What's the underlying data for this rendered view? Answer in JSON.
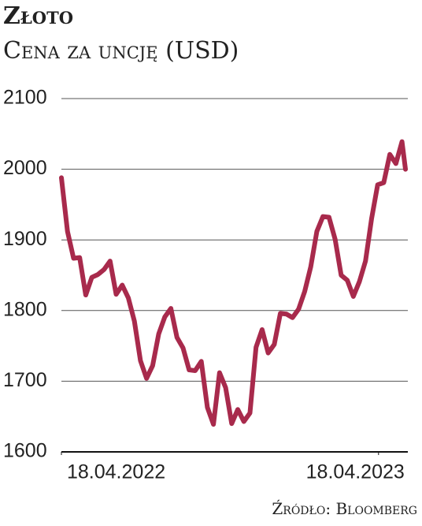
{
  "chart_data": {
    "type": "line",
    "title": "Złoto",
    "subtitle": "Cena za uncję (USD)",
    "source": "Źródło: Bloomberg",
    "x": [
      "2022-04-18",
      "2022-04-25",
      "2022-05-02",
      "2022-05-09",
      "2022-05-16",
      "2022-05-23",
      "2022-05-30",
      "2022-06-06",
      "2022-06-13",
      "2022-06-20",
      "2022-06-27",
      "2022-07-04",
      "2022-07-11",
      "2022-07-18",
      "2022-07-25",
      "2022-08-01",
      "2022-08-08",
      "2022-08-15",
      "2022-08-22",
      "2022-08-29",
      "2022-09-05",
      "2022-09-12",
      "2022-09-19",
      "2022-09-26",
      "2022-10-03",
      "2022-10-10",
      "2022-10-17",
      "2022-10-24",
      "2022-10-31",
      "2022-11-07",
      "2022-11-14",
      "2022-11-21",
      "2022-11-28",
      "2022-12-05",
      "2022-12-12",
      "2022-12-19",
      "2022-12-26",
      "2023-01-02",
      "2023-01-09",
      "2023-01-16",
      "2023-01-23",
      "2023-01-30",
      "2023-02-06",
      "2023-02-13",
      "2023-02-20",
      "2023-02-27",
      "2023-03-06",
      "2023-03-13",
      "2023-03-20",
      "2023-03-27",
      "2023-04-03",
      "2023-04-10",
      "2023-04-17",
      "2023-04-24",
      "2023-05-01",
      "2023-05-08",
      "2023-05-15",
      "2023-05-19"
    ],
    "series": [
      {
        "color": "#a82a4c",
        "values": [
          1988,
          1912,
          1874,
          1875,
          1822,
          1847,
          1851,
          1858,
          1870,
          1823,
          1836,
          1818,
          1785,
          1729,
          1704,
          1722,
          1767,
          1791,
          1803,
          1762,
          1747,
          1716,
          1715,
          1728,
          1663,
          1639,
          1712,
          1691,
          1640,
          1660,
          1643,
          1655,
          1748,
          1773,
          1740,
          1752,
          1796,
          1795,
          1790,
          1802,
          1827,
          1862,
          1912,
          1933,
          1932,
          1901,
          1850,
          1843,
          1820,
          1841,
          1870,
          1930,
          1978,
          1981,
          2021,
          2008,
          2039,
          2000
        ]
      }
    ],
    "xlim": [
      "2022-04-18",
      "2023-05-19"
    ],
    "xticks": [
      {
        "value": "2022-04-18",
        "label": "18.04.2022"
      },
      {
        "value": "2023-04-18",
        "label": "18.04.2023"
      }
    ],
    "ylim": [
      1600,
      2100
    ],
    "yticks": [
      1600,
      1700,
      1800,
      1900,
      2000,
      2100
    ],
    "grid": true
  }
}
